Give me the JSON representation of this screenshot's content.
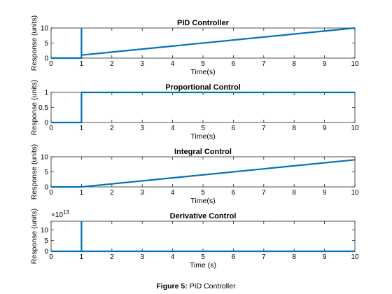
{
  "figure": {
    "caption_label": "Figure 5:",
    "caption_text": "PID Controller"
  },
  "chart_data": [
    {
      "type": "line",
      "title": "PID Controller",
      "xlabel": "Time(s)",
      "ylabel": "Response (units)",
      "xlim": [
        0,
        10
      ],
      "ylim": [
        0,
        10
      ],
      "xticks": [
        0,
        1,
        2,
        3,
        4,
        5,
        6,
        7,
        8,
        9,
        10
      ],
      "yticks": [
        0,
        5,
        10
      ],
      "exponent": "",
      "grid": false,
      "color": "#0072BD",
      "x": [
        0,
        1,
        1,
        1,
        10
      ],
      "y": [
        0,
        0,
        10,
        1,
        10
      ]
    },
    {
      "type": "line",
      "title": "Proportional Control",
      "xlabel": "Time(s)",
      "ylabel": "Response (units)",
      "xlim": [
        0,
        10
      ],
      "ylim": [
        0,
        1
      ],
      "xticks": [
        0,
        1,
        2,
        3,
        4,
        5,
        6,
        7,
        8,
        9,
        10
      ],
      "yticks": [
        0,
        0.5,
        1
      ],
      "exponent": "",
      "grid": false,
      "color": "#0072BD",
      "x": [
        0,
        1,
        1,
        10
      ],
      "y": [
        0,
        0,
        1,
        1
      ]
    },
    {
      "type": "line",
      "title": "Integral Control",
      "xlabel": "Time(s)",
      "ylabel": "Response (units)",
      "xlim": [
        0,
        10
      ],
      "ylim": [
        0,
        10
      ],
      "xticks": [
        0,
        1,
        2,
        3,
        4,
        5,
        6,
        7,
        8,
        9,
        10
      ],
      "yticks": [
        0,
        5,
        10
      ],
      "exponent": "",
      "grid": false,
      "color": "#0072BD",
      "x": [
        0,
        1,
        10
      ],
      "y": [
        0,
        0,
        9
      ]
    },
    {
      "type": "line",
      "title": "Derivative Control",
      "xlabel": "Time (s)",
      "ylabel": "Response (units)",
      "xlim": [
        0,
        10
      ],
      "ylim": [
        0,
        14
      ],
      "xticks": [
        0,
        1,
        2,
        3,
        4,
        5,
        6,
        7,
        8,
        9,
        10
      ],
      "yticks": [
        0,
        5,
        10
      ],
      "exponent": "13",
      "grid": false,
      "color": "#0072BD",
      "x": [
        0,
        1,
        1,
        1,
        10
      ],
      "y": [
        0,
        0,
        14,
        0,
        0
      ]
    }
  ]
}
